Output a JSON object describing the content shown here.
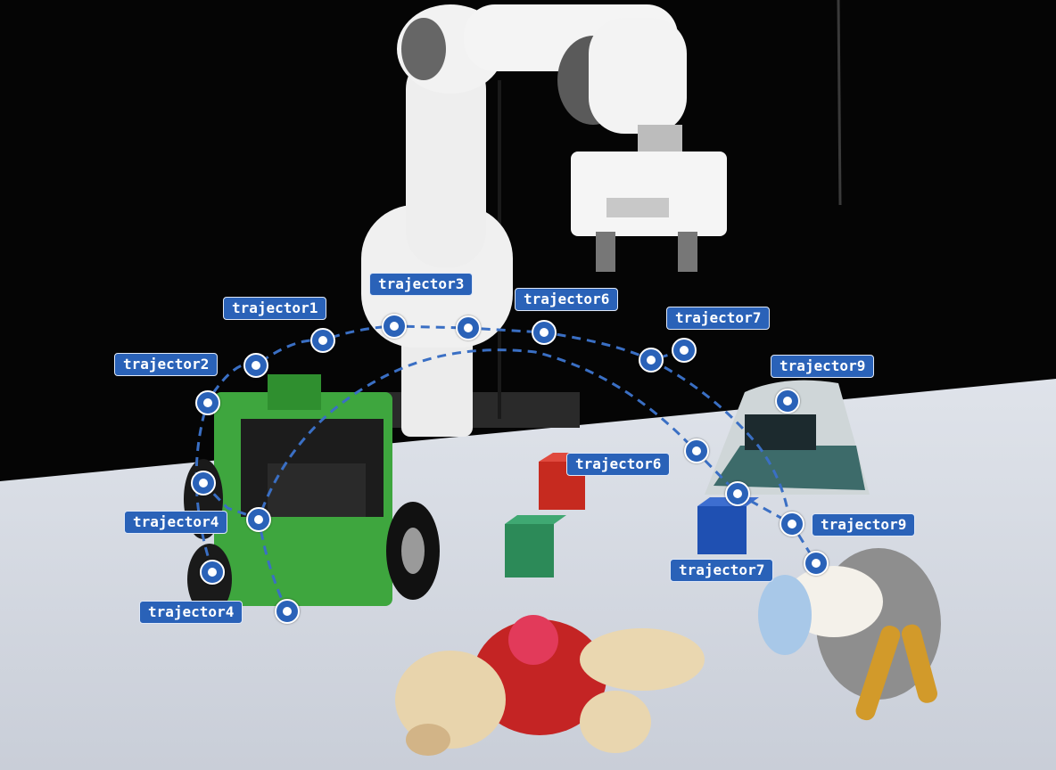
{
  "image": {
    "description_colors": {
      "trajectory_line": "#3a6fc4",
      "label_bg": "#2a62b8",
      "label_text": "#ffffff",
      "table": "#d9dde4",
      "robot_arm": "#f2f2f2",
      "rover_body": "#3aa23a",
      "block_red": "#c8281e",
      "block_green": "#2e8b57",
      "block_blue": "#1f52b0"
    }
  },
  "labels": [
    {
      "id": "l1",
      "text": "trajector1"
    },
    {
      "id": "l2",
      "text": "trajector2"
    },
    {
      "id": "l3",
      "text": "trajector3"
    },
    {
      "id": "l4",
      "text": "trajector6"
    },
    {
      "id": "l5",
      "text": "trajector7"
    },
    {
      "id": "l6",
      "text": "trajector9"
    },
    {
      "id": "l7",
      "text": "trajector6"
    },
    {
      "id": "l8",
      "text": "trajector4"
    },
    {
      "id": "l9",
      "text": "trajector9"
    },
    {
      "id": "l10",
      "text": "trajector7"
    },
    {
      "id": "l11",
      "text": "trajector4"
    }
  ]
}
